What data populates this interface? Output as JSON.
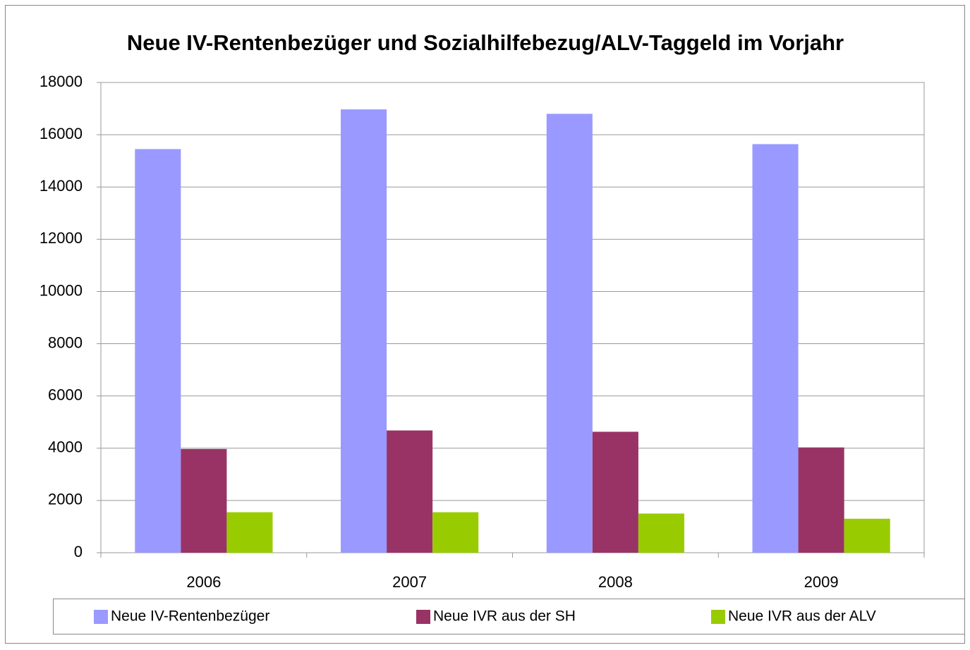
{
  "chart_data": {
    "type": "bar",
    "title": "Neue IV-Rentenbezüger und Sozialhilfebezug/ALV-Taggeld im Vorjahr",
    "categories": [
      "2006",
      "2007",
      "2008",
      "2009"
    ],
    "series": [
      {
        "name": "Neue IV-Rentenbezüger",
        "color": "#9999ff",
        "values": [
          15450,
          16970,
          16800,
          15640
        ]
      },
      {
        "name": "Neue IVR aus der SH",
        "color": "#993366",
        "values": [
          3970,
          4680,
          4630,
          4030
        ]
      },
      {
        "name": "Neue IVR aus der ALV",
        "color": "#99cc00",
        "values": [
          1550,
          1550,
          1500,
          1300
        ]
      }
    ],
    "ylim": [
      0,
      18000
    ],
    "yticks": [
      0,
      2000,
      4000,
      6000,
      8000,
      10000,
      12000,
      14000,
      16000,
      18000
    ],
    "grid": true,
    "legend": "bottom"
  }
}
